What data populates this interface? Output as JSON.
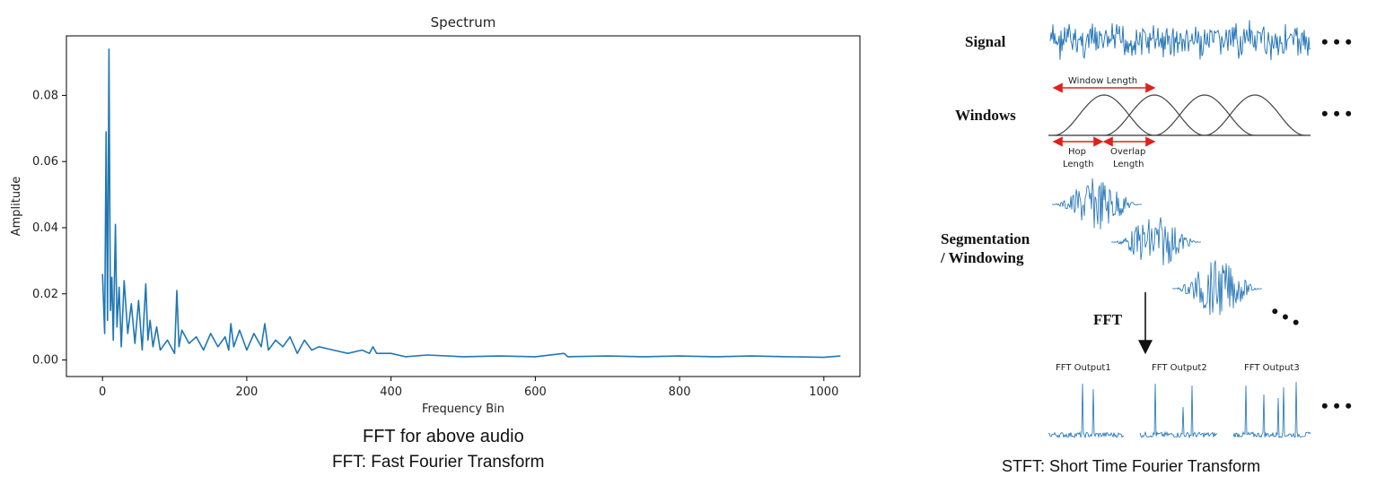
{
  "chart_data": {
    "type": "line",
    "title": "Spectrum",
    "xlabel": "Frequency Bin",
    "ylabel": "Amplitude",
    "xlim": [
      -50,
      1050
    ],
    "ylim": [
      -0.005,
      0.098
    ],
    "xticks": [
      0,
      200,
      400,
      600,
      800,
      1000
    ],
    "yticks": [
      0.0,
      0.02,
      0.04,
      0.06,
      0.08
    ],
    "ytick_labels": [
      "0.00",
      "0.02",
      "0.04",
      "0.06",
      "0.08"
    ],
    "grid": false,
    "color": "#1f77b4",
    "series": [
      {
        "x": [
          0,
          3,
          5,
          7,
          9,
          11,
          13,
          15,
          18,
          20,
          23,
          26,
          30,
          35,
          40,
          45,
          50,
          55,
          60,
          63,
          66,
          70,
          75,
          80,
          90,
          100,
          103,
          106,
          110,
          120,
          130,
          140,
          150,
          160,
          170,
          175,
          178,
          182,
          190,
          200,
          210,
          220,
          225,
          230,
          240,
          250,
          260,
          270,
          280,
          290,
          300,
          320,
          340,
          360,
          370,
          375,
          380,
          400,
          420,
          450,
          500,
          550,
          600,
          640,
          645,
          700,
          750,
          800,
          850,
          900,
          950,
          1000,
          1023
        ],
        "y": [
          0.026,
          0.008,
          0.069,
          0.012,
          0.094,
          0.015,
          0.025,
          0.006,
          0.041,
          0.01,
          0.022,
          0.004,
          0.024,
          0.008,
          0.017,
          0.005,
          0.018,
          0.003,
          0.023,
          0.006,
          0.012,
          0.004,
          0.01,
          0.003,
          0.006,
          0.002,
          0.021,
          0.004,
          0.009,
          0.005,
          0.007,
          0.003,
          0.008,
          0.004,
          0.007,
          0.003,
          0.011,
          0.004,
          0.009,
          0.003,
          0.008,
          0.004,
          0.011,
          0.003,
          0.006,
          0.004,
          0.007,
          0.002,
          0.006,
          0.003,
          0.004,
          0.003,
          0.002,
          0.003,
          0.002,
          0.004,
          0.002,
          0.002,
          0.001,
          0.0015,
          0.001,
          0.0012,
          0.001,
          0.002,
          0.001,
          0.0012,
          0.001,
          0.0012,
          0.001,
          0.0012,
          0.001,
          0.0008,
          0.0012
        ]
      }
    ]
  },
  "captions": {
    "fft_line1": "FFT for above audio",
    "fft_line2_abbr": "FFT",
    "fft_line2_rest": ": Fast Fourier Transform",
    "stft_abbr": "STFT",
    "stft_rest": ": Short Time Fourier Transform"
  },
  "diagram": {
    "signal_label": "Signal",
    "windows_label": "Windows",
    "segmentation_label_1": "Segmentation",
    "segmentation_label_2": "/ Windowing",
    "fft_label": "FFT",
    "window_length": "Window Length",
    "hop_1": "Hop",
    "hop_2": "Length",
    "overlap_1": "Overlap",
    "overlap_2": "Length",
    "out1": "FFT Output1",
    "out2": "FFT Output2",
    "out3": "FFT Output3",
    "ellipsis": "• • •",
    "diag_ellipsis": "• • •",
    "signal_color": "#1a6fb5",
    "arrow_color": "#e0211d"
  }
}
